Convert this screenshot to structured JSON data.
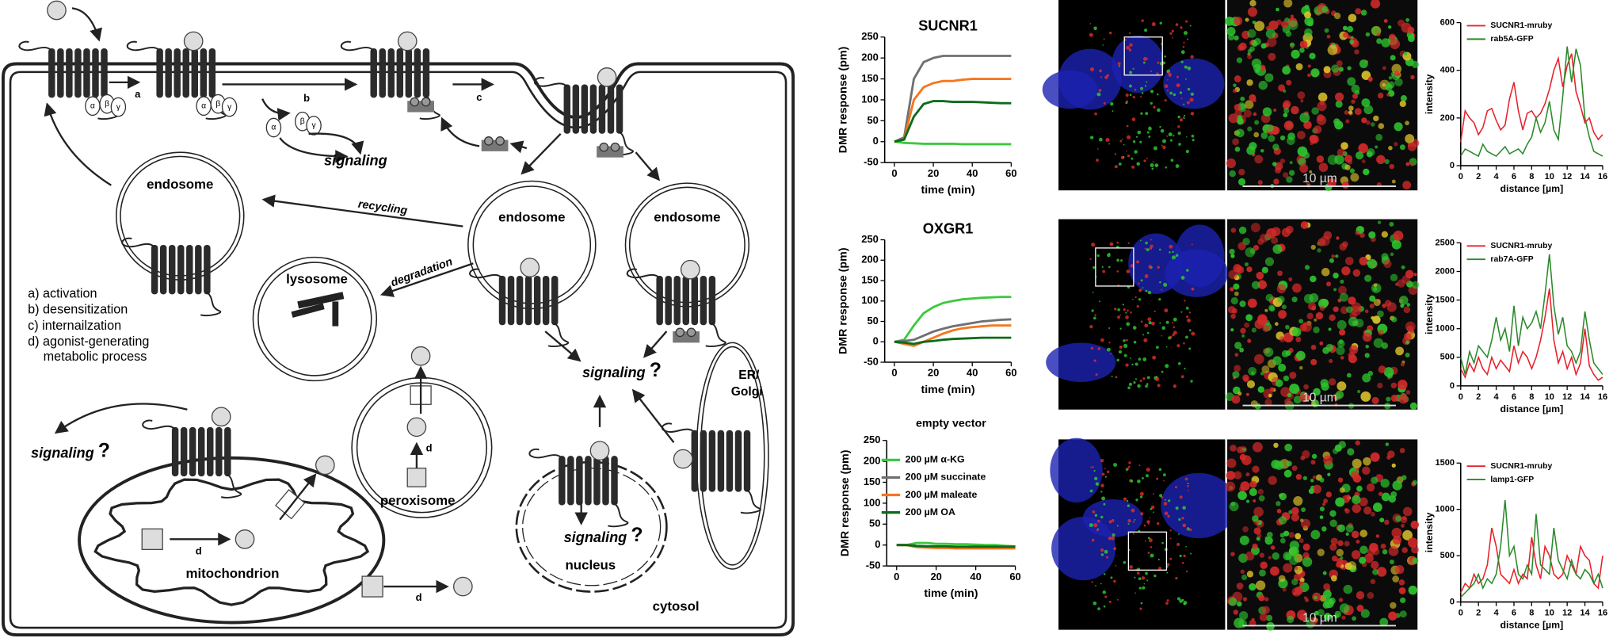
{
  "diagram": {
    "steps": [
      "a",
      "b",
      "c"
    ],
    "g_protein": [
      "α",
      "β",
      "γ"
    ],
    "endosomes": [
      "endosome",
      "endosome",
      "endosome"
    ],
    "recycling": "recycling",
    "degradation": "degradation",
    "lysosome": "lysosome",
    "legend": [
      "a) activation",
      "b) desensitization",
      "c) internailzation",
      "d) agonist-generating",
      "metabolic process"
    ],
    "signaling": [
      {
        "text": "signaling"
      },
      {
        "text": "signaling",
        "mark": "?"
      },
      {
        "text": "signaling",
        "mark": "?"
      },
      {
        "text": "signaling",
        "mark": "?"
      }
    ],
    "er_golgi": [
      "ER/",
      "Golgi"
    ],
    "peroxisome": "peroxisome",
    "mitochondrion": "mitochondrion",
    "nucleus": "nucleus",
    "cytosol": "cytosol",
    "d_labels": [
      "d",
      "d",
      "d"
    ]
  },
  "micrographs": {
    "scale_bars": [
      "10 µm",
      "10 µm",
      "10 µm"
    ]
  },
  "chart_data": [
    {
      "type": "line",
      "title": "SUCNR1",
      "xlabel": "time (min)",
      "ylabel": "DMR response (pm)",
      "x": [
        0,
        5,
        10,
        15,
        20,
        25,
        30,
        35,
        40,
        45,
        50,
        55,
        60
      ],
      "xlim": [
        -5,
        60
      ],
      "xticks": [
        0,
        20,
        40,
        60
      ],
      "ylim": [
        -50,
        250
      ],
      "yticks": [
        -50,
        0,
        50,
        100,
        150,
        200,
        250
      ],
      "series": [
        {
          "color": "#3ec93e",
          "values": [
            0,
            -3,
            -4,
            -5,
            -5,
            -5,
            -5,
            -6,
            -6,
            -6,
            -6,
            -6,
            -6
          ]
        },
        {
          "color": "#707070",
          "values": [
            0,
            10,
            150,
            190,
            200,
            205,
            205,
            205,
            205,
            205,
            205,
            205,
            205
          ]
        },
        {
          "color": "#f7761f",
          "values": [
            0,
            5,
            100,
            130,
            140,
            145,
            145,
            148,
            150,
            150,
            150,
            150,
            150
          ]
        },
        {
          "color": "#0b6b1a",
          "values": [
            0,
            5,
            60,
            90,
            97,
            97,
            95,
            95,
            95,
            94,
            93,
            92,
            92
          ]
        }
      ]
    },
    {
      "type": "line",
      "title": "OXGR1",
      "xlabel": "time (min)",
      "ylabel": "DMR response (pm)",
      "x": [
        0,
        5,
        10,
        15,
        20,
        25,
        30,
        35,
        40,
        45,
        50,
        55,
        60
      ],
      "xlim": [
        -5,
        60
      ],
      "xticks": [
        0,
        20,
        40,
        60
      ],
      "ylim": [
        -50,
        250
      ],
      "yticks": [
        -50,
        0,
        50,
        100,
        150,
        200,
        250
      ],
      "series": [
        {
          "color": "#3ec93e",
          "values": [
            0,
            5,
            40,
            70,
            85,
            95,
            100,
            104,
            106,
            108,
            109,
            110,
            110
          ]
        },
        {
          "color": "#707070",
          "values": [
            0,
            2,
            5,
            15,
            25,
            32,
            38,
            42,
            46,
            50,
            52,
            54,
            55
          ]
        },
        {
          "color": "#f7761f",
          "values": [
            0,
            -5,
            -10,
            0,
            10,
            20,
            28,
            33,
            36,
            38,
            40,
            40,
            40
          ]
        },
        {
          "color": "#0b6b1a",
          "values": [
            0,
            -2,
            -5,
            0,
            2,
            5,
            7,
            8,
            9,
            10,
            10,
            10,
            10
          ]
        }
      ]
    },
    {
      "type": "line",
      "title": "empty vector",
      "xlabel": "time (min)",
      "ylabel": "DMR response (pm)",
      "legend": "upper left",
      "x": [
        0,
        5,
        10,
        15,
        20,
        25,
        30,
        35,
        40,
        45,
        50,
        55,
        60
      ],
      "xlim": [
        -5,
        60
      ],
      "xticks": [
        0,
        20,
        40,
        60
      ],
      "ylim": [
        -50,
        250
      ],
      "yticks": [
        -50,
        0,
        50,
        100,
        150,
        200,
        250
      ],
      "series": [
        {
          "name": "200 µM α-KG",
          "color": "#3ec93e",
          "values": [
            0,
            0,
            5,
            5,
            3,
            3,
            2,
            2,
            1,
            0,
            0,
            -2,
            -3
          ]
        },
        {
          "name": "200 µM succinate",
          "color": "#707070",
          "values": [
            0,
            0,
            -2,
            -3,
            -4,
            -4,
            -5,
            -5,
            -5,
            -5,
            -6,
            -6,
            -6
          ]
        },
        {
          "name": "200 µM maleate",
          "color": "#f7761f",
          "values": [
            0,
            0,
            -5,
            -6,
            -7,
            -7,
            -8,
            -8,
            -8,
            -8,
            -8,
            -8,
            -8
          ]
        },
        {
          "name": "200 µM OA",
          "color": "#0b6b1a",
          "values": [
            0,
            0,
            -2,
            -3,
            -3,
            -3,
            -4,
            -4,
            -4,
            -4,
            -4,
            -4,
            -4
          ]
        }
      ]
    },
    {
      "type": "line",
      "xlabel": "distance [µm]",
      "ylabel": "intensity",
      "legend": "upper left",
      "x": [
        0,
        0.5,
        1,
        1.5,
        2,
        2.5,
        3,
        3.5,
        4,
        4.5,
        5,
        5.5,
        6,
        6.5,
        7,
        7.5,
        8,
        8.5,
        9,
        9.5,
        10,
        10.5,
        11,
        11.5,
        12,
        12.5,
        13,
        13.5,
        14,
        14.5,
        15,
        15.5,
        16
      ],
      "xlim": [
        0,
        16
      ],
      "xticks": [
        0,
        2,
        4,
        6,
        8,
        10,
        12,
        14,
        16
      ],
      "ylim": [
        0,
        600
      ],
      "yticks": [
        0,
        200,
        400,
        600
      ],
      "series": [
        {
          "name": "SUCNR1-mruby",
          "color": "#e8202a",
          "values": [
            100,
            230,
            200,
            180,
            130,
            160,
            230,
            240,
            190,
            150,
            170,
            280,
            350,
            230,
            150,
            220,
            230,
            200,
            220,
            260,
            320,
            400,
            450,
            330,
            420,
            470,
            310,
            250,
            180,
            200,
            140,
            110,
            130
          ]
        },
        {
          "name": "rab5A-GFP",
          "color": "#2a8a2a",
          "values": [
            40,
            70,
            60,
            50,
            40,
            90,
            60,
            50,
            40,
            60,
            80,
            50,
            60,
            70,
            50,
            90,
            120,
            200,
            140,
            180,
            270,
            150,
            110,
            290,
            500,
            350,
            490,
            420,
            200,
            120,
            60,
            50,
            40
          ]
        }
      ]
    },
    {
      "type": "line",
      "xlabel": "distance [µm]",
      "ylabel": "intensity",
      "legend": "upper left",
      "x": [
        0,
        0.5,
        1,
        1.5,
        2,
        2.5,
        3,
        3.5,
        4,
        4.5,
        5,
        5.5,
        6,
        6.5,
        7,
        7.5,
        8,
        8.5,
        9,
        9.5,
        10,
        10.5,
        11,
        11.5,
        12,
        12.5,
        13,
        13.5,
        14,
        14.5,
        15,
        15.5,
        16
      ],
      "xlim": [
        0,
        16
      ],
      "xticks": [
        0,
        2,
        4,
        6,
        8,
        10,
        12,
        14,
        16
      ],
      "ylim": [
        0,
        2500
      ],
      "yticks": [
        0,
        500,
        1000,
        1500,
        2000,
        2500
      ],
      "series": [
        {
          "name": "SUCNR1-mruby",
          "color": "#e8202a",
          "values": [
            300,
            150,
            400,
            250,
            500,
            300,
            200,
            500,
            300,
            450,
            350,
            250,
            700,
            400,
            600,
            500,
            300,
            500,
            800,
            1200,
            1700,
            800,
            400,
            600,
            300,
            500,
            200,
            400,
            1000,
            350,
            200,
            100,
            150
          ]
        },
        {
          "name": "rab7A-GFP",
          "color": "#2a8a2a",
          "values": [
            500,
            200,
            600,
            400,
            700,
            600,
            500,
            800,
            1200,
            800,
            1000,
            600,
            1400,
            700,
            1200,
            1000,
            1100,
            1300,
            1000,
            1600,
            2300,
            1400,
            900,
            1200,
            700,
            600,
            400,
            600,
            1300,
            800,
            400,
            300,
            200
          ]
        }
      ]
    },
    {
      "type": "line",
      "xlabel": "distance [µm]",
      "ylabel": "intensity",
      "legend": "upper left",
      "x": [
        0,
        0.5,
        1,
        1.5,
        2,
        2.5,
        3,
        3.5,
        4,
        4.5,
        5,
        5.5,
        6,
        6.5,
        7,
        7.5,
        8,
        8.5,
        9,
        9.5,
        10,
        10.5,
        11,
        11.5,
        12,
        12.5,
        13,
        13.5,
        14,
        14.5,
        15,
        15.5,
        16
      ],
      "xlim": [
        0,
        16
      ],
      "xticks": [
        0,
        2,
        4,
        6,
        8,
        10,
        12,
        14,
        16
      ],
      "ylim": [
        0,
        1500
      ],
      "yticks": [
        0,
        500,
        1000,
        1500
      ],
      "series": [
        {
          "name": "SUCNR1-mruby",
          "color": "#e8202a",
          "values": [
            100,
            200,
            150,
            300,
            200,
            250,
            400,
            800,
            600,
            300,
            250,
            200,
            350,
            200,
            300,
            250,
            700,
            400,
            250,
            600,
            500,
            300,
            250,
            300,
            500,
            400,
            300,
            600,
            500,
            450,
            200,
            150,
            500
          ]
        },
        {
          "name": "lamp1-GFP",
          "color": "#2a8a2a",
          "values": [
            50,
            100,
            150,
            200,
            300,
            150,
            250,
            200,
            300,
            600,
            1100,
            500,
            600,
            300,
            250,
            400,
            300,
            950,
            400,
            350,
            300,
            800,
            450,
            350,
            250,
            450,
            300,
            250,
            350,
            300,
            200,
            300,
            150
          ]
        }
      ]
    }
  ]
}
